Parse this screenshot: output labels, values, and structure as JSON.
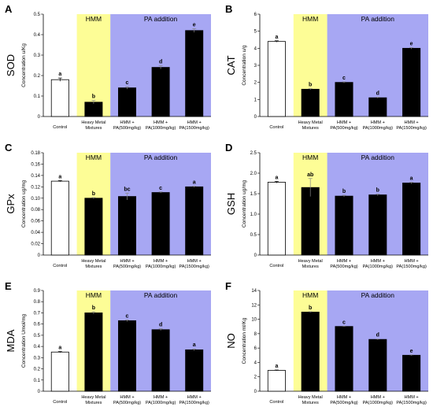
{
  "band_labels": {
    "hmm": "HMM",
    "pa": "PA addition"
  },
  "colors": {
    "hmm_band": "#fdfd96",
    "pa_band": "#a7a7f3",
    "control_bar": "#ffffff",
    "treatment_bar": "#000000"
  },
  "chart_data": [
    {
      "type": "bar",
      "panel": "A",
      "metric": "SOD",
      "ylabel": "Concentration u/Kg",
      "categories": [
        [
          "Control"
        ],
        [
          "Heavy Metal",
          "Mixtures"
        ],
        [
          "HMM +",
          "PA(500mg/kg)"
        ],
        [
          "HMM +",
          "PA(1000mg/kg)"
        ],
        [
          "HMM +",
          "PA(1500mg/kg)"
        ]
      ],
      "values": [
        0.18,
        0.07,
        0.14,
        0.24,
        0.42
      ],
      "errors": [
        0.008,
        0.008,
        0.006,
        0.008,
        0.009
      ],
      "labels": [
        "a",
        "b",
        "c",
        "d",
        "e"
      ],
      "ylim": [
        0,
        0.5
      ],
      "ticks": [
        0,
        0.1,
        0.2,
        0.3,
        0.4,
        0.5
      ],
      "tick_labels": [
        "0",
        "0.1",
        "0.2",
        "0.3",
        "0.4",
        "0.5"
      ]
    },
    {
      "type": "bar",
      "panel": "B",
      "metric": "CAT",
      "ylabel": "Concentration u/g",
      "categories": [
        [
          "Control"
        ],
        [
          "Heavy Metal",
          "Mixtures"
        ],
        [
          "HMM +",
          "PA(500mg/kg)"
        ],
        [
          "HMM +",
          "PA(1000mg/kg)"
        ],
        [
          "HMM +",
          "PA(1500mg/kg)"
        ]
      ],
      "values": [
        4.4,
        1.6,
        2.0,
        1.1,
        4.0
      ],
      "errors": [
        0.04,
        0.03,
        0.03,
        0.03,
        0.04
      ],
      "labels": [
        "a",
        "b",
        "c",
        "d",
        "e"
      ],
      "ylim": [
        0,
        6
      ],
      "ticks": [
        0,
        1,
        2,
        3,
        4,
        5,
        6
      ],
      "tick_labels": [
        "0",
        "1",
        "2",
        "3",
        "4",
        "5",
        "6"
      ]
    },
    {
      "type": "bar",
      "panel": "C",
      "metric": "GPx",
      "ylabel": "Concentration ug/mg",
      "categories": [
        [
          "Control"
        ],
        [
          "Heavy Metal",
          "Mixtures"
        ],
        [
          "HMM +",
          "PA(500mg/kg)"
        ],
        [
          "HMM +",
          "PA(1000mg/kg)"
        ],
        [
          "HMM +",
          "PA(1500mg/kg)"
        ]
      ],
      "values": [
        0.13,
        0.1,
        0.103,
        0.11,
        0.12
      ],
      "errors": [
        0.001,
        0.001,
        0.006,
        0.001,
        0.001
      ],
      "labels": [
        "a",
        "b",
        "bc",
        "c",
        "a"
      ],
      "ylim": [
        0,
        0.18
      ],
      "ticks": [
        0,
        0.02,
        0.04,
        0.06,
        0.08,
        0.1,
        0.12,
        0.14,
        0.16,
        0.18
      ],
      "tick_labels": [
        "0",
        "0.02",
        "0.04",
        "0.06",
        "0.08",
        "0.10",
        "0.12",
        "0.14",
        "0.16",
        "0.18"
      ]
    },
    {
      "type": "bar",
      "panel": "D",
      "metric": "GSH",
      "ylabel": "Concentration ug/mg",
      "categories": [
        [
          "Control"
        ],
        [
          "Heavy Metal",
          "Mixtures"
        ],
        [
          "HMM +",
          "PA(500mg/kg)"
        ],
        [
          "HMM +",
          "PA(1000mg/kg)"
        ],
        [
          "HMM +",
          "PA(1500mg/kg)"
        ]
      ],
      "values": [
        1.78,
        1.65,
        1.44,
        1.47,
        1.76
      ],
      "errors": [
        0.02,
        0.22,
        0.02,
        0.02,
        0.02
      ],
      "labels": [
        "a",
        "ab",
        "b",
        "b",
        "a"
      ],
      "ylim": [
        0,
        2.5
      ],
      "ticks": [
        0,
        0.5,
        1,
        1.5,
        2,
        2.5
      ],
      "tick_labels": [
        "0",
        "0.5",
        "1.0",
        "1.5",
        "2.0",
        "2.5"
      ]
    },
    {
      "type": "bar",
      "panel": "E",
      "metric": "MDA",
      "ylabel": "Concentration Umol/mg",
      "categories": [
        [
          "Control"
        ],
        [
          "Heavy Metal",
          "Mixtures"
        ],
        [
          "HMM +",
          "PA(500mg/kg)"
        ],
        [
          "HMM +",
          "PA(1000mg/kg)"
        ],
        [
          "HMM +",
          "PA(1500mg/kg)"
        ]
      ],
      "values": [
        0.35,
        0.7,
        0.63,
        0.55,
        0.37
      ],
      "errors": [
        0.005,
        0.01,
        0.008,
        0.008,
        0.008
      ],
      "labels": [
        "a",
        "b",
        "c",
        "d",
        "a"
      ],
      "ylim": [
        0,
        0.9
      ],
      "ticks": [
        0,
        0.1,
        0.2,
        0.3,
        0.4,
        0.5,
        0.6,
        0.7,
        0.8,
        0.9
      ],
      "tick_labels": [
        "0",
        "0.1",
        "0.2",
        "0.3",
        "0.4",
        "0.5",
        "0.6",
        "0.7",
        "0.8",
        "0.9"
      ]
    },
    {
      "type": "bar",
      "panel": "F",
      "metric": "NO",
      "ylabel": "Concentration ml/Kg",
      "categories": [
        [
          "Control"
        ],
        [
          "Heavy Metal",
          "Mixtures"
        ],
        [
          "HMM +",
          "PA(500mg/kg)"
        ],
        [
          "HMM +",
          "PA(1000mg/kg)"
        ],
        [
          "HMM +",
          "PA(1500mg/kg)"
        ]
      ],
      "values": [
        2.9,
        11.0,
        9.0,
        7.2,
        5.0
      ],
      "errors": [
        0.05,
        0.05,
        0.05,
        0.05,
        0.05
      ],
      "labels": [
        "a",
        "b",
        "c",
        "d",
        "e"
      ],
      "ylim": [
        0,
        14
      ],
      "ticks": [
        0,
        2,
        4,
        6,
        8,
        10,
        12,
        14
      ],
      "tick_labels": [
        "0",
        "2",
        "4",
        "6",
        "8",
        "10",
        "12",
        "14"
      ]
    }
  ]
}
